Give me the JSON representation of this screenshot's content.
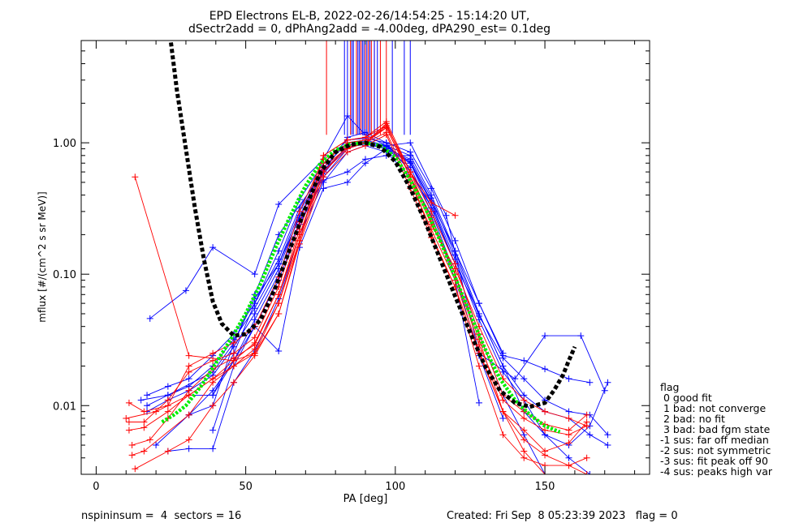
{
  "title_line1": "EPD Electrons EL-B, 2022-02-26/14:54:25 - 15:14:20 UT,",
  "title_line2": "dSectr2add = 0, dPhAng2add = -4.00deg, dPA290_est=   0.1deg",
  "footer_left": "nspininsum =  4  sectors = 16",
  "footer_right": "Created: Fri Sep  8 05:23:39 2023   flag = 0",
  "legend": {
    "title": "flag",
    "items": [
      " 0 good fit",
      " 1 bad: not converge",
      " 2 bad: no fit",
      " 3 bad: bad fgm state",
      "-1 sus: far off median",
      "-2 sus: not symmetric",
      "-3 sus: fit peak off 90",
      "-4 sus: peaks high var"
    ]
  },
  "colors": {
    "red": "#ff0000",
    "blue": "#0000ff",
    "black": "#000000",
    "green": "#00ee00"
  },
  "chart_data": {
    "type": "line",
    "xlabel": "PA [deg]",
    "ylabel": "mflux [#/(cm^2 s sr MeV)]",
    "xlim": [
      -5,
      185
    ],
    "ylim": [
      0.003,
      6.0
    ],
    "ylog": true,
    "xticks": [
      0,
      50,
      100,
      150
    ],
    "xtick_labels": [
      "0",
      "50",
      "100",
      "150"
    ],
    "yticks": [
      0.01,
      0.1,
      1.0
    ],
    "ytick_labels": [
      "0.01",
      "0.10",
      "1.00"
    ],
    "series": [
      {
        "color": "blue",
        "marker": "plus",
        "x": [
          18,
          30,
          39,
          53,
          61,
          76,
          84,
          90,
          97,
          105,
          117,
          128,
          140,
          150,
          162,
          170
        ],
        "y": [
          0.046,
          0.075,
          0.16,
          0.1,
          0.34,
          0.75,
          1.6,
          1.15,
          0.95,
          1.0,
          0.28,
          0.025,
          0.016,
          0.034,
          0.034,
          0.013
        ]
      },
      {
        "color": "blue",
        "marker": "plus",
        "x": [
          15,
          24,
          39,
          46,
          53,
          61,
          76,
          84,
          90,
          97,
          105,
          113,
          120,
          128,
          136,
          143,
          150,
          158,
          165,
          171
        ],
        "y": [
          0.011,
          0.012,
          0.018,
          0.03,
          0.07,
          0.2,
          0.6,
          1.1,
          1.2,
          1.0,
          0.6,
          0.3,
          0.12,
          0.05,
          0.02,
          0.009,
          0.006,
          0.005,
          0.007,
          0.015
        ]
      },
      {
        "color": "blue",
        "marker": "plus",
        "x": [
          17,
          24,
          31,
          39,
          46,
          53,
          61,
          68,
          76,
          84,
          90,
          97,
          105,
          112,
          120,
          128,
          136,
          143,
          150,
          158,
          165,
          171
        ],
        "y": [
          0.012,
          0.014,
          0.016,
          0.024,
          0.035,
          0.06,
          0.13,
          0.32,
          0.65,
          1.0,
          1.05,
          0.95,
          0.8,
          0.4,
          0.15,
          0.05,
          0.02,
          0.012,
          0.009,
          0.008,
          0.006,
          0.005
        ]
      },
      {
        "color": "blue",
        "marker": "plus",
        "x": [
          17,
          24,
          31,
          39,
          46,
          53,
          61,
          68,
          76,
          84,
          90,
          97,
          105,
          112,
          120,
          128,
          136,
          143,
          150,
          158,
          165
        ],
        "y": [
          0.009,
          0.011,
          0.013,
          0.017,
          0.028,
          0.05,
          0.11,
          0.28,
          0.6,
          0.95,
          1.0,
          0.9,
          0.7,
          0.35,
          0.13,
          0.045,
          0.018,
          0.011,
          0.006,
          0.004,
          0.003
        ]
      },
      {
        "color": "blue",
        "marker": "plus",
        "x": [
          20,
          31,
          39,
          46,
          53,
          61,
          68,
          76,
          84,
          90,
          97,
          105,
          112,
          120,
          128,
          136,
          143,
          150
        ],
        "y": [
          0.005,
          0.0085,
          0.013,
          0.022,
          0.045,
          0.1,
          0.25,
          0.55,
          0.9,
          1.0,
          0.95,
          0.7,
          0.32,
          0.12,
          0.035,
          0.012,
          0.006,
          0.003
        ]
      },
      {
        "color": "blue",
        "marker": "plus",
        "x": [
          17,
          24,
          31,
          39,
          46,
          53,
          61,
          68,
          76,
          84,
          90,
          97,
          105,
          112,
          120,
          128,
          136,
          143,
          150,
          158,
          165,
          171
        ],
        "y": [
          0.01,
          0.012,
          0.014,
          0.02,
          0.032,
          0.055,
          0.12,
          0.3,
          0.62,
          0.92,
          0.98,
          0.9,
          0.75,
          0.38,
          0.14,
          0.048,
          0.023,
          0.016,
          0.011,
          0.009,
          0.0085,
          0.006
        ]
      },
      {
        "color": "blue",
        "marker": "plus",
        "x": [
          24,
          31,
          39,
          46,
          53,
          61,
          68,
          76,
          84,
          90,
          97,
          105,
          112,
          120,
          128
        ],
        "y": [
          0.0045,
          0.0047,
          0.0047,
          0.015,
          0.026,
          0.065,
          0.2,
          0.5,
          0.85,
          0.95,
          0.85,
          0.55,
          0.28,
          0.09,
          0.0105
        ]
      },
      {
        "color": "blue",
        "marker": "plus",
        "x": [
          39,
          53,
          61,
          68,
          76,
          84,
          90,
          97,
          105,
          112,
          120,
          128,
          136
        ],
        "y": [
          0.012,
          0.04,
          0.026,
          0.16,
          0.45,
          0.5,
          0.7,
          0.9,
          0.65,
          0.3,
          0.1,
          0.024,
          0.008
        ]
      },
      {
        "color": "blue",
        "marker": "plus",
        "x": [
          31,
          39,
          46,
          53,
          61,
          68,
          76,
          84,
          90,
          97,
          105,
          112,
          120,
          128,
          136,
          143,
          150,
          158,
          165
        ],
        "y": [
          0.0085,
          0.01,
          0.03,
          0.065,
          0.12,
          0.27,
          0.58,
          0.96,
          1.02,
          0.93,
          0.72,
          0.36,
          0.15,
          0.06,
          0.024,
          0.022,
          0.019,
          0.016,
          0.015
        ]
      },
      {
        "color": "blue",
        "marker": "plus",
        "x": [
          31,
          39,
          46,
          53,
          61,
          68,
          76,
          84,
          90,
          97,
          105,
          112,
          120,
          128,
          136
        ],
        "y": [
          0.012,
          0.012,
          0.025,
          0.06,
          0.15,
          0.37,
          0.7,
          1.05,
          1.08,
          1.0,
          0.85,
          0.45,
          0.18,
          0.06,
          0.025
        ]
      },
      {
        "color": "blue",
        "marker": "plus",
        "x": [
          39,
          46,
          53,
          61,
          68,
          76,
          84,
          90,
          97,
          105
        ],
        "y": [
          0.0065,
          0.02,
          0.04,
          0.09,
          0.24,
          0.52,
          0.6,
          0.75,
          0.8,
          0.8
        ]
      },
      {
        "color": "red",
        "marker": "plus",
        "x": [
          11,
          16,
          24,
          31,
          39,
          46,
          53,
          61,
          68,
          76,
          84,
          90,
          97,
          105,
          112,
          120,
          128,
          136,
          143,
          150,
          158,
          164
        ],
        "y": [
          0.0105,
          0.009,
          0.01,
          0.02,
          0.025,
          0.03,
          0.04,
          0.095,
          0.3,
          0.75,
          0.95,
          1.0,
          1.35,
          0.6,
          0.25,
          0.1,
          0.032,
          0.009,
          0.0065,
          0.0045,
          0.0052,
          0.0075
        ]
      },
      {
        "color": "red",
        "marker": "plus",
        "x": [
          11,
          16,
          24,
          31,
          39,
          46,
          53,
          61,
          68,
          76,
          84,
          90,
          97,
          105,
          112,
          120,
          128,
          136,
          143,
          150,
          158,
          164
        ],
        "y": [
          0.0075,
          0.0075,
          0.011,
          0.018,
          0.022,
          0.025,
          0.033,
          0.08,
          0.25,
          0.8,
          1.05,
          1.1,
          1.45,
          0.6,
          0.3,
          0.12,
          0.035,
          0.012,
          0.009,
          0.0072,
          0.0065,
          0.0085
        ]
      },
      {
        "color": "red",
        "marker": "plus",
        "x": [
          12,
          18,
          24,
          31,
          39,
          46,
          53,
          61,
          68,
          76,
          84,
          90,
          97,
          105,
          112,
          120,
          128,
          136,
          143,
          150,
          158,
          164
        ],
        "y": [
          0.005,
          0.0055,
          0.008,
          0.013,
          0.019,
          0.023,
          0.029,
          0.07,
          0.22,
          0.7,
          1.0,
          1.05,
          1.3,
          0.55,
          0.27,
          0.1,
          0.029,
          0.011,
          0.008,
          0.0065,
          0.006,
          0.007
        ]
      },
      {
        "color": "red",
        "marker": "plus",
        "x": [
          12,
          16,
          31,
          39,
          46,
          53,
          61,
          68,
          76,
          84,
          90,
          97,
          105,
          112,
          120,
          128,
          136,
          143,
          150,
          158,
          164
        ],
        "y": [
          0.0042,
          0.0045,
          0.0085,
          0.015,
          0.02,
          0.027,
          0.06,
          0.2,
          0.65,
          0.92,
          1.0,
          1.2,
          0.5,
          0.22,
          0.09,
          0.026,
          0.009,
          0.0055,
          0.0042,
          0.0035,
          0.003
        ]
      },
      {
        "color": "red",
        "marker": "plus",
        "x": [
          13,
          24,
          31,
          39,
          46,
          53,
          61,
          68,
          76,
          84,
          90,
          97,
          105,
          112,
          120,
          128,
          136,
          143,
          150,
          158,
          164
        ],
        "y": [
          0.0033,
          0.0045,
          0.0055,
          0.01,
          0.015,
          0.024,
          0.05,
          0.17,
          0.55,
          0.85,
          0.95,
          1.15,
          0.45,
          0.19,
          0.08,
          0.02,
          0.006,
          0.004,
          0.0035,
          0.0035,
          0.004
        ]
      },
      {
        "color": "red",
        "marker": "plus",
        "x": [
          13,
          31,
          46,
          53,
          61,
          68,
          76,
          84,
          90,
          97,
          105,
          112,
          120
        ],
        "y": [
          0.55,
          0.024,
          0.022,
          0.025,
          0.05,
          0.18,
          0.8,
          1.05,
          1.1,
          1.35,
          0.6,
          0.35,
          0.28
        ]
      },
      {
        "color": "red",
        "marker": "plus",
        "x": [
          10,
          20,
          31,
          39,
          46,
          53,
          61,
          68,
          76,
          84,
          90,
          97,
          105,
          112,
          120,
          128,
          136,
          143,
          150,
          158,
          164
        ],
        "y": [
          0.008,
          0.009,
          0.012,
          0.016,
          0.022,
          0.03,
          0.07,
          0.2,
          0.6,
          0.9,
          1.0,
          1.3,
          0.55,
          0.24,
          0.11,
          0.04,
          0.016,
          0.011,
          0.009,
          0.008,
          0.007
        ]
      },
      {
        "color": "red",
        "marker": "plus",
        "x": [
          11,
          16,
          24,
          31,
          39,
          46,
          53,
          61,
          68,
          76,
          84,
          90,
          97,
          105,
          112,
          120,
          128,
          136,
          143,
          150
        ],
        "y": [
          0.0065,
          0.0068,
          0.009,
          0.012,
          0.016,
          0.02,
          0.025,
          0.06,
          0.18,
          0.6,
          0.95,
          1.0,
          1.4,
          0.55,
          0.2,
          0.08,
          0.025,
          0.009,
          0.0045,
          0.003
        ]
      }
    ],
    "vertical_lines": [
      {
        "color": "red",
        "x": [
          77,
          85,
          87,
          88.5,
          90,
          91,
          92,
          93,
          95,
          97
        ]
      },
      {
        "color": "blue",
        "x": [
          83,
          84,
          85.5,
          86,
          87.5,
          88,
          89,
          89.5,
          90.5,
          91.5,
          93,
          94,
          99,
          103,
          105
        ]
      }
    ],
    "median_curve": {
      "color": "black",
      "style": "dashed",
      "x": [
        25,
        27,
        30,
        33,
        36,
        39,
        42,
        46,
        50,
        55,
        60,
        65,
        70,
        75,
        80,
        85,
        90,
        95,
        100,
        105,
        110,
        115,
        120,
        125,
        130,
        135,
        140,
        145,
        150,
        153,
        156,
        158,
        160
      ],
      "y": [
        5.8,
        2.5,
        0.9,
        0.32,
        0.13,
        0.062,
        0.042,
        0.034,
        0.035,
        0.045,
        0.08,
        0.16,
        0.32,
        0.6,
        0.85,
        0.97,
        1.0,
        0.93,
        0.72,
        0.45,
        0.25,
        0.13,
        0.068,
        0.036,
        0.02,
        0.013,
        0.0105,
        0.0098,
        0.0105,
        0.013,
        0.017,
        0.022,
        0.028
      ]
    },
    "fit_curve": {
      "color": "green",
      "style": "dashed",
      "x": [
        22,
        26,
        30,
        35,
        40,
        45,
        50,
        55,
        60,
        65,
        70,
        75,
        80,
        85,
        90,
        95,
        100,
        105,
        110,
        115,
        120,
        125,
        130,
        135,
        140,
        145,
        150,
        155
      ],
      "y": [
        0.0075,
        0.0085,
        0.01,
        0.014,
        0.021,
        0.032,
        0.05,
        0.085,
        0.16,
        0.28,
        0.47,
        0.7,
        0.88,
        0.98,
        1.0,
        0.95,
        0.78,
        0.52,
        0.32,
        0.18,
        0.095,
        0.05,
        0.027,
        0.016,
        0.011,
        0.0085,
        0.007,
        0.0063
      ]
    }
  }
}
